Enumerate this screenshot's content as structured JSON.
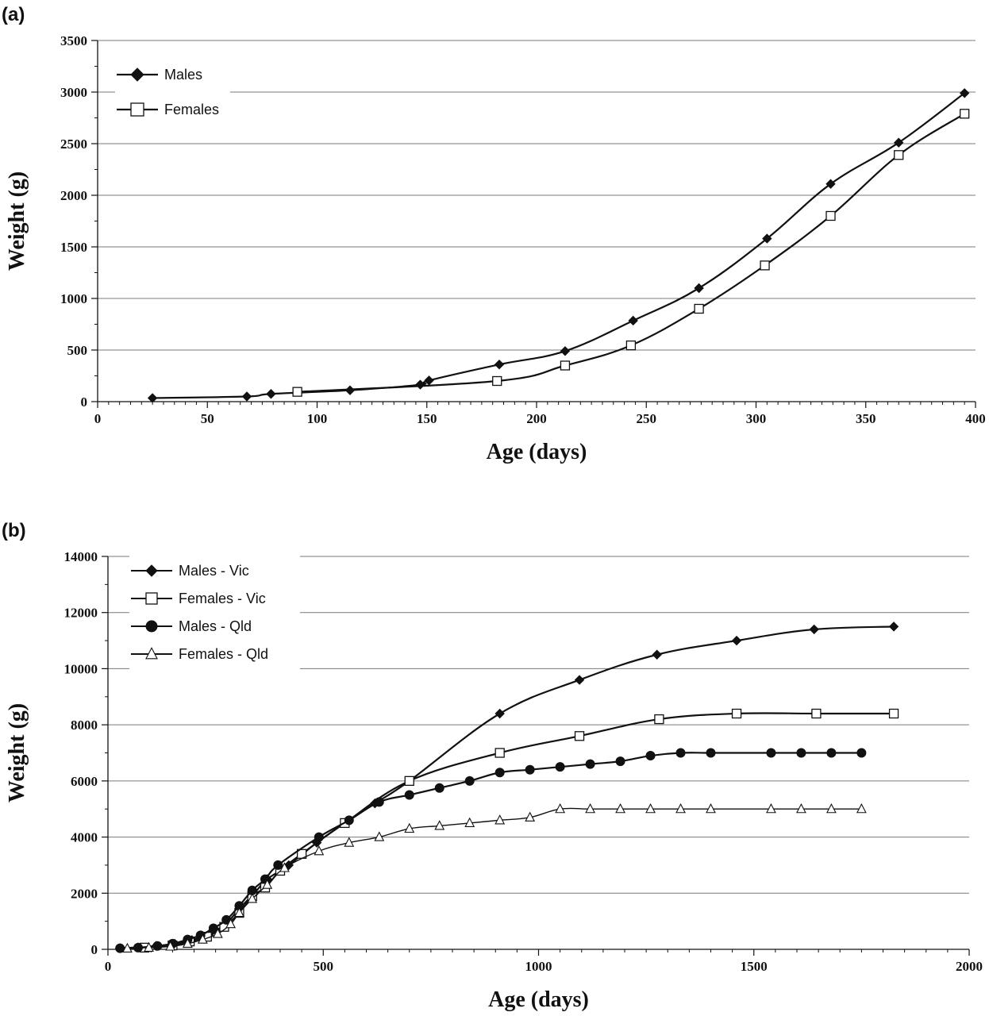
{
  "figure": {
    "panel_a_label": "(a)",
    "panel_b_label": "(b)"
  },
  "chart_data": [
    {
      "type": "line",
      "panel": "(a)",
      "xlabel": "Age (days)",
      "ylabel": "Weight (g)",
      "xlim": [
        0,
        400
      ],
      "ylim": [
        0,
        3500
      ],
      "xticks": [
        0,
        50,
        100,
        150,
        200,
        250,
        300,
        350,
        400
      ],
      "yticks": [
        0,
        500,
        1000,
        1500,
        2000,
        2500,
        3000,
        3500
      ],
      "grid": "horizontal",
      "legend_position": "top-left",
      "series": [
        {
          "name": "Males",
          "marker": "diamond",
          "x": [
            25,
            68,
            79,
            115,
            147,
            151,
            183,
            213,
            244,
            274,
            305,
            334,
            365,
            395
          ],
          "y": [
            35,
            50,
            75,
            110,
            165,
            205,
            360,
            490,
            785,
            1100,
            1580,
            2110,
            2510,
            2990
          ]
        },
        {
          "name": "Females",
          "marker": "open-square",
          "x": [
            91,
            182,
            213,
            243,
            274,
            304,
            334,
            365,
            395
          ],
          "y": [
            95,
            200,
            350,
            545,
            900,
            1320,
            1800,
            2390,
            2790
          ]
        }
      ]
    },
    {
      "type": "line",
      "panel": "(b)",
      "xlabel": "Age (days)",
      "ylabel": "Weight (g)",
      "xlim": [
        0,
        2000
      ],
      "ylim": [
        0,
        14000
      ],
      "xticks": [
        0,
        500,
        1000,
        1500,
        2000
      ],
      "yticks": [
        0,
        2000,
        4000,
        6000,
        8000,
        10000,
        12000,
        14000
      ],
      "grid": "horizontal",
      "legend_position": "top-left",
      "series": [
        {
          "name": "Males - Vic",
          "marker": "diamond",
          "x": [
            28,
            70,
            112,
            155,
            195,
            235,
            275,
            305,
            340,
            370,
            420,
            485,
            550,
            620,
            700,
            910,
            1095,
            1275,
            1460,
            1640,
            1825
          ],
          "y": [
            40,
            70,
            120,
            200,
            330,
            540,
            930,
            1450,
            2000,
            2500,
            3000,
            3800,
            4500,
            5200,
            6000,
            8400,
            9600,
            10500,
            11000,
            11400,
            11500
          ]
        },
        {
          "name": "Females - Vic",
          "marker": "open-square",
          "x": [
            85,
            150,
            190,
            230,
            270,
            305,
            335,
            365,
            400,
            450,
            550,
            700,
            910,
            1095,
            1280,
            1460,
            1645,
            1825
          ],
          "y": [
            60,
            140,
            280,
            450,
            800,
            1300,
            1900,
            2200,
            2800,
            3400,
            4500,
            6000,
            7000,
            7600,
            8200,
            8400,
            8400,
            8400
          ]
        },
        {
          "name": "Males - Qld",
          "marker": "filled-circle",
          "x": [
            28,
            70,
            115,
            150,
            185,
            215,
            245,
            275,
            305,
            335,
            365,
            395,
            490,
            560,
            630,
            700,
            770,
            840,
            910,
            980,
            1050,
            1120,
            1190,
            1260,
            1330,
            1400,
            1540,
            1610,
            1680,
            1750
          ],
          "y": [
            40,
            60,
            120,
            200,
            350,
            500,
            750,
            1050,
            1550,
            2100,
            2500,
            3000,
            4000,
            4600,
            5250,
            5500,
            5750,
            6000,
            6300,
            6400,
            6500,
            6600,
            6700,
            6900,
            7000,
            7000,
            7000,
            7000,
            7000,
            7000
          ]
        },
        {
          "name": "Females - Qld",
          "marker": "open-triangle",
          "x": [
            45,
            95,
            145,
            185,
            220,
            255,
            285,
            305,
            335,
            370,
            410,
            490,
            560,
            630,
            700,
            770,
            840,
            910,
            980,
            1050,
            1120,
            1190,
            1260,
            1330,
            1400,
            1540,
            1610,
            1680,
            1750
          ],
          "y": [
            30,
            60,
            100,
            200,
            350,
            550,
            900,
            1300,
            1800,
            2300,
            2900,
            3500,
            3800,
            4000,
            4300,
            4400,
            4500,
            4600,
            4700,
            5000,
            5000,
            5000,
            5000,
            5000,
            5000,
            5000,
            5000,
            5000,
            5000
          ]
        }
      ]
    }
  ]
}
